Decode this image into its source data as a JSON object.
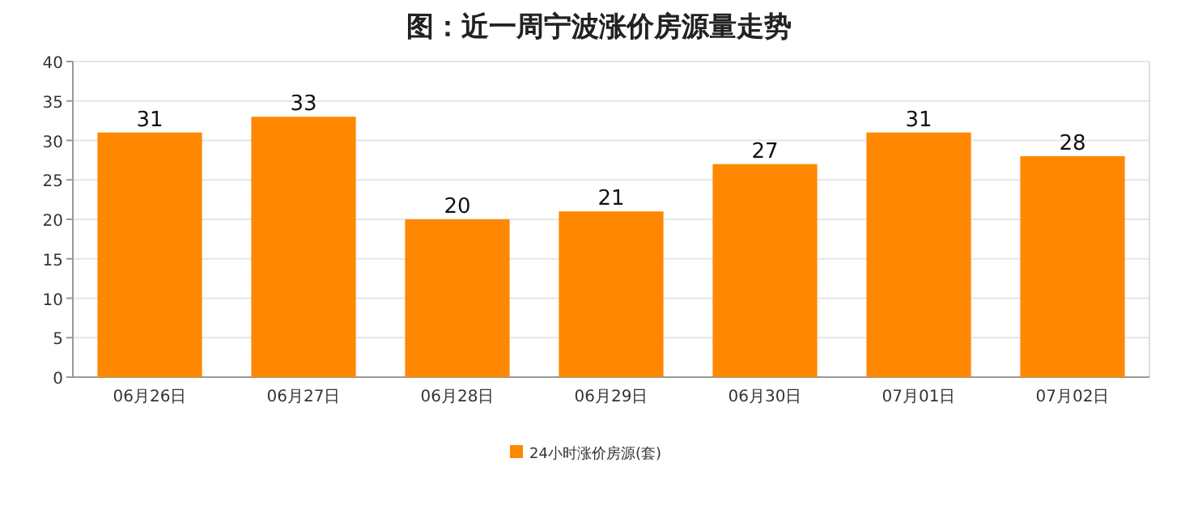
{
  "chart_data": {
    "type": "bar",
    "title": "图：近一周宁波涨价房源量走势",
    "categories": [
      "06月26日",
      "06月27日",
      "06月28日",
      "06月29日",
      "06月30日",
      "07月01日",
      "07月02日"
    ],
    "series": [
      {
        "name": "24小时涨价房源(套)",
        "color": "#ff8800",
        "values": [
          31,
          33,
          20,
          21,
          27,
          31,
          28
        ]
      }
    ],
    "ylim": [
      0,
      40
    ],
    "yticks": [
      0,
      5,
      10,
      15,
      20,
      25,
      30,
      35,
      40
    ],
    "grid": "y",
    "data_labels": true,
    "legend": "bottom"
  }
}
